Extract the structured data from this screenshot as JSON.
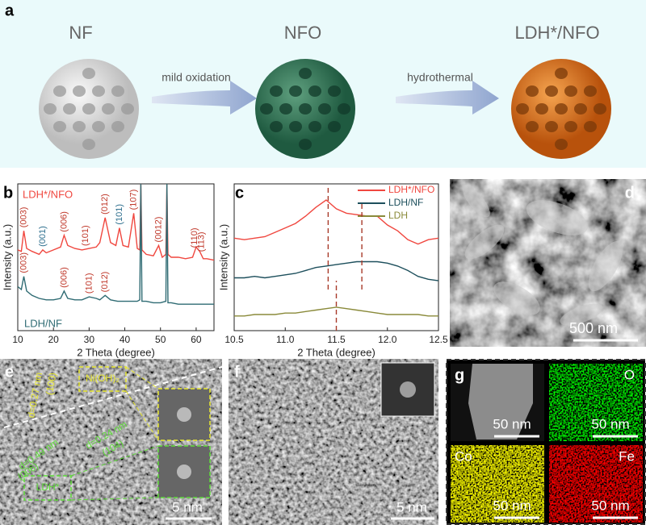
{
  "panel_a": {
    "label": "a",
    "stages": [
      "NF",
      "NFO",
      "LDH*/NFO"
    ],
    "steps": [
      "mild oxidation",
      "hydrothermal"
    ]
  },
  "chart_data": [
    {
      "type": "line",
      "panel_label": "b",
      "x_label": "2 Theta (degree)",
      "y_label": "Intensity (a.u.)",
      "xlim": [
        10,
        65
      ],
      "xticks": [
        10,
        20,
        30,
        40,
        50,
        60
      ],
      "ylim": [
        0,
        100
      ],
      "series": [
        {
          "name": "LDH*/NFO",
          "color": "#f0473f",
          "x": [
            10,
            11,
            11.7,
            12.5,
            14,
            16,
            17,
            18,
            20,
            22,
            23,
            24,
            26,
            28,
            30,
            32,
            33,
            34.5,
            36,
            37.5,
            38.5,
            39.5,
            41,
            42.5,
            43.5,
            44.2,
            44.5,
            44.8,
            46,
            48,
            49.5,
            50.5,
            51.5,
            51.8,
            52.1,
            53,
            55,
            57,
            59,
            60,
            61,
            62,
            63,
            65
          ],
          "values": [
            55,
            54,
            68,
            56,
            54,
            52,
            55,
            53,
            55,
            57,
            65,
            58,
            56,
            55,
            56,
            57,
            60,
            77,
            60,
            58,
            70,
            58,
            57,
            80,
            56,
            55,
            100,
            55,
            52,
            51,
            58,
            50,
            52,
            100,
            52,
            50,
            50,
            49,
            50,
            57,
            54,
            49,
            49,
            48
          ],
          "peak_labels": [
            {
              "label": "(003)",
              "x": 11.7,
              "color": "#c0392b"
            },
            {
              "label": "(001)",
              "x": 17,
              "color": "#2e6f8e"
            },
            {
              "label": "(006)",
              "x": 23,
              "color": "#c0392b"
            },
            {
              "label": "(101)",
              "x": 29,
              "color": "#c0392b"
            },
            {
              "label": "(012)",
              "x": 34.5,
              "color": "#c0392b"
            },
            {
              "label": "(101)",
              "x": 38.5,
              "color": "#2e6f8e"
            },
            {
              "label": "(107)",
              "x": 42.5,
              "color": "#c0392b"
            },
            {
              "label": "(0012)",
              "x": 49.5,
              "color": "#c0392b"
            },
            {
              "label": "(110)",
              "x": 59.6,
              "color": "#c0392b"
            },
            {
              "label": "(113)",
              "x": 61.5,
              "color": "#c0392b"
            }
          ]
        },
        {
          "name": "LDH/NF",
          "color": "#2f6b73",
          "x": [
            10,
            11,
            11.7,
            12.5,
            14,
            16,
            18,
            20,
            22,
            23,
            24,
            26,
            28,
            30,
            32,
            33,
            34.5,
            36,
            38,
            40,
            42,
            43.5,
            44.2,
            44.5,
            44.8,
            46,
            48,
            50,
            51.5,
            51.8,
            52.1,
            53,
            55,
            58,
            60,
            62,
            65
          ],
          "values": [
            30,
            28,
            37,
            27,
            24,
            22,
            21,
            21,
            22,
            27,
            22,
            21,
            21,
            23,
            22,
            21,
            24,
            21,
            20,
            20,
            20,
            20,
            21,
            100,
            20,
            20,
            19,
            19,
            20,
            100,
            19,
            19,
            18,
            18,
            18,
            18,
            18
          ],
          "peak_labels": [
            {
              "label": "(003)",
              "x": 11.7,
              "color": "#c0392b"
            },
            {
              "label": "(006)",
              "x": 23,
              "color": "#c0392b"
            },
            {
              "label": "(101)",
              "x": 30,
              "color": "#c0392b"
            },
            {
              "label": "(012)",
              "x": 34.5,
              "color": "#c0392b"
            }
          ]
        }
      ]
    },
    {
      "type": "line",
      "panel_label": "c",
      "x_label": "2 Theta (degree)",
      "y_label": "Intensity (a.u.)",
      "xlim": [
        10.5,
        12.5
      ],
      "xticks": [
        10.5,
        {
          "value": 11,
          "label": "11.0"
        },
        11.5,
        {
          "value": 12,
          "label": "12.0"
        },
        12.5
      ],
      "ylim": [
        0,
        100
      ],
      "legend": "upper right",
      "x": [
        10.5,
        10.6,
        10.7,
        10.8,
        10.9,
        11,
        11.1,
        11.2,
        11.3,
        11.4,
        11.5,
        11.6,
        11.7,
        11.8,
        11.9,
        12,
        12.1,
        12.2,
        12.3,
        12.4,
        12.5
      ],
      "series": [
        {
          "name": "LDH*/NFO",
          "color": "#f0473f",
          "values": [
            63,
            62,
            63,
            64,
            67,
            70,
            73,
            78,
            84,
            89,
            83,
            80,
            79,
            78,
            78,
            72,
            68,
            62,
            59,
            62,
            63
          ]
        },
        {
          "name": "LDH/NF",
          "color": "#1d4f5c",
          "values": [
            36,
            36,
            37,
            36,
            37,
            38,
            39,
            41,
            43,
            44,
            45,
            46,
            47,
            47,
            47,
            46,
            44,
            41,
            37,
            35,
            34
          ]
        },
        {
          "name": "LDH",
          "color": "#8a8a3a",
          "values": [
            10,
            10,
            11,
            11,
            11,
            12,
            12,
            13,
            14,
            15,
            16,
            15,
            14,
            13,
            12,
            11,
            11,
            11,
            11,
            10,
            10
          ]
        }
      ],
      "reference_lines": [
        {
          "x": 11.42,
          "y": [
            28,
            98
          ],
          "color": "#a83a2a"
        },
        {
          "x": 11.75,
          "y": [
            28,
            88
          ],
          "color": "#a83a2a"
        },
        {
          "x": 11.5,
          "y": [
            0,
            34
          ],
          "color": "#a83a2a"
        }
      ]
    }
  ],
  "panel_d": {
    "label": "d",
    "scale_bar": "500 nm"
  },
  "panel_e": {
    "label": "e",
    "scale_bar": "5 nm",
    "annotations": [
      "d=0.27 nm",
      "(100)",
      "Ni(OH)₂",
      "d=0.24 nm",
      "(104)",
      "d=0.49 nm",
      "(006)",
      "LDH*"
    ]
  },
  "panel_f": {
    "label": "f",
    "scale_bar": "5 nm"
  },
  "panel_g": {
    "label": "g",
    "tiles": [
      {
        "scale_bar": "50 nm"
      },
      {
        "element": "O",
        "scale_bar": "50 nm"
      },
      {
        "element": "Co",
        "scale_bar": "50 nm"
      },
      {
        "element": "Fe",
        "scale_bar": "50 nm"
      }
    ]
  }
}
